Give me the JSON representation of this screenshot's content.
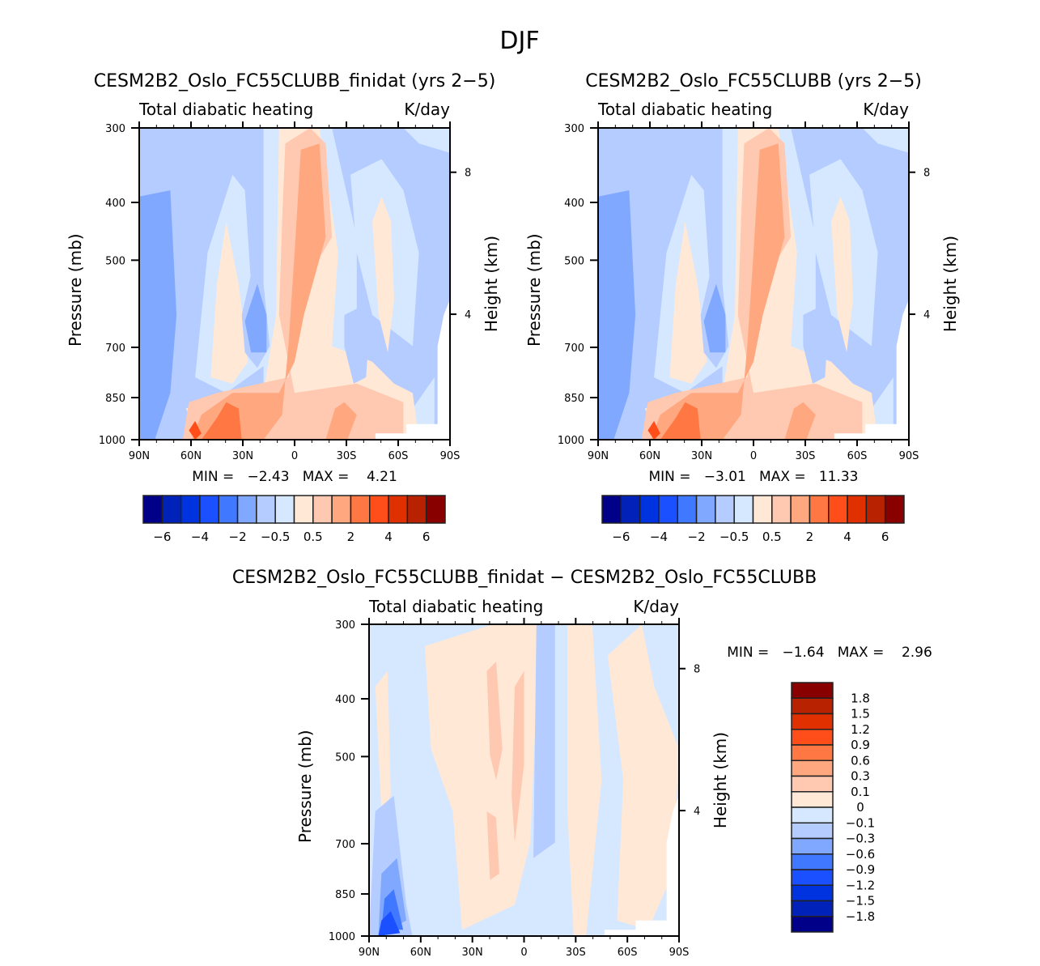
{
  "figure_title": "DJF",
  "palette": [
    "#000088",
    "#0022b8",
    "#0033e0",
    "#1a50ff",
    "#4078ff",
    "#80a8ff",
    "#b4ccff",
    "#d6e8ff",
    "#ffe8d6",
    "#ffc8b0",
    "#ffa880",
    "#ff7844",
    "#ff4e1a",
    "#e03000",
    "#b82200",
    "#880000"
  ],
  "chart_data": [
    {
      "type": "heatmap",
      "id": "panel-a",
      "title": "CESM2B2_Oslo_FC55CLUBB_finidat (yrs 2−5)",
      "left_subtitle": "Total diabatic heating",
      "right_subtitle": "K/day",
      "xlabel": "",
      "ylabel": "Pressure (mb)",
      "ylabel_right": "Height (km)",
      "x_ticks": [
        "90N",
        "60N",
        "30N",
        "0",
        "30S",
        "60S",
        "90S"
      ],
      "x_range": [
        90,
        -90
      ],
      "y_ticks": [
        "300",
        "400",
        "500",
        "700",
        "850",
        "1000"
      ],
      "y_tick_values": [
        300,
        400,
        500,
        700,
        850,
        1000
      ],
      "y_range_mb": [
        300,
        1000
      ],
      "y_log": true,
      "y_right_ticks": [
        "8",
        "4"
      ],
      "stats": "MIN =   −2.43   MAX =    4.21",
      "min": -2.43,
      "max": 4.21,
      "colorbar": {
        "orientation": "horizontal",
        "labels": [
          "−6",
          "−4",
          "−2",
          "−0.5",
          "0.5",
          "2",
          "4",
          "6"
        ],
        "levels": [
          -7,
          -6,
          -5,
          -4,
          -3,
          -2,
          -1,
          -0.5,
          0,
          0.5,
          1,
          2,
          3,
          4,
          5,
          6
        ]
      }
    },
    {
      "type": "heatmap",
      "id": "panel-b",
      "title": "CESM2B2_Oslo_FC55CLUBB (yrs 2−5)",
      "left_subtitle": "Total diabatic heating",
      "right_subtitle": "K/day",
      "ylabel": "Pressure (mb)",
      "ylabel_right": "Height (km)",
      "x_ticks": [
        "90N",
        "60N",
        "30N",
        "0",
        "30S",
        "60S",
        "90S"
      ],
      "y_ticks": [
        "300",
        "400",
        "500",
        "700",
        "850",
        "1000"
      ],
      "y_tick_values": [
        300,
        400,
        500,
        700,
        850,
        1000
      ],
      "y_right_ticks": [
        "8",
        "4"
      ],
      "stats": "MIN =   −3.01   MAX =   11.33",
      "min": -3.01,
      "max": 11.33,
      "colorbar": {
        "orientation": "horizontal",
        "labels": [
          "−6",
          "−4",
          "−2",
          "−0.5",
          "0.5",
          "2",
          "4",
          "6"
        ]
      }
    },
    {
      "type": "heatmap",
      "id": "panel-diff",
      "title": "CESM2B2_Oslo_FC55CLUBB_finidat − CESM2B2_Oslo_FC55CLUBB",
      "left_subtitle": "Total diabatic heating",
      "right_subtitle": "K/day",
      "ylabel": "Pressure (mb)",
      "ylabel_right": "Height (km)",
      "x_ticks": [
        "90N",
        "60N",
        "30N",
        "0",
        "30S",
        "60S",
        "90S"
      ],
      "y_ticks": [
        "300",
        "400",
        "500",
        "700",
        "850",
        "1000"
      ],
      "y_tick_values": [
        300,
        400,
        500,
        700,
        850,
        1000
      ],
      "y_right_ticks": [
        "8",
        "4"
      ],
      "stats": "MIN =   −1.64   MAX =    2.96",
      "min": -1.64,
      "max": 2.96,
      "colorbar": {
        "orientation": "vertical",
        "labels": [
          "1.8",
          "1.5",
          "1.2",
          "0.9",
          "0.6",
          "0.3",
          "0.1",
          "0",
          "−0.1",
          "−0.3",
          "−0.6",
          "−0.9",
          "−1.2",
          "−1.5",
          "−1.8"
        ]
      }
    }
  ]
}
